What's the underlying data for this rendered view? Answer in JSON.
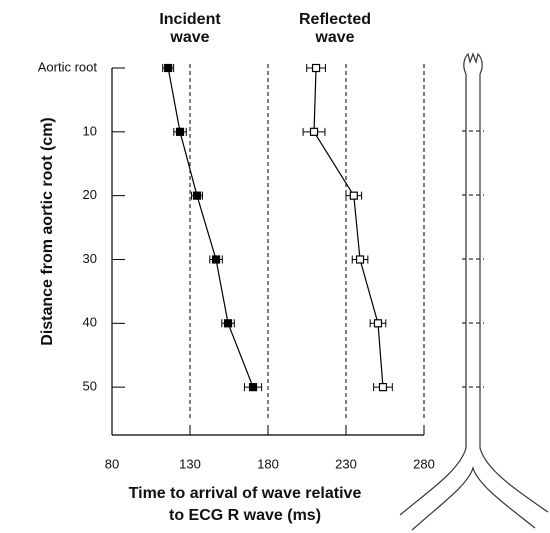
{
  "chart_data": {
    "type": "line",
    "x_label": [
      "Time to arrival of wave relative",
      "to ECG R wave (ms)"
    ],
    "y_label": "Distance from aortic root (cm)",
    "xlim": [
      80,
      280
    ],
    "xticks": [
      80,
      130,
      180,
      230,
      280
    ],
    "ylim": [
      0,
      57.5
    ],
    "y_reversed": true,
    "yticks": [
      {
        "value": 0,
        "label": "Aortic root"
      },
      10,
      20,
      30,
      40,
      50
    ],
    "grid": true,
    "series": [
      {
        "name": "Incident wave",
        "color": "#000000",
        "filled": true,
        "y": [
          0,
          10,
          20,
          30,
          40,
          50
        ],
        "values": [
          116,
          123.6,
          134.5,
          146.7,
          154.4,
          170.4
        ],
        "errors": [
          3.5,
          4,
          3.5,
          4,
          4,
          5.5
        ]
      },
      {
        "name": "Reflected wave",
        "color": "#000000",
        "filled": false,
        "y": [
          0,
          10,
          20,
          30,
          40,
          50
        ],
        "values": [
          210.8,
          209.5,
          235,
          239,
          250.5,
          253.7
        ],
        "errors": [
          6,
          7,
          5,
          5,
          5,
          6
        ]
      }
    ]
  }
}
